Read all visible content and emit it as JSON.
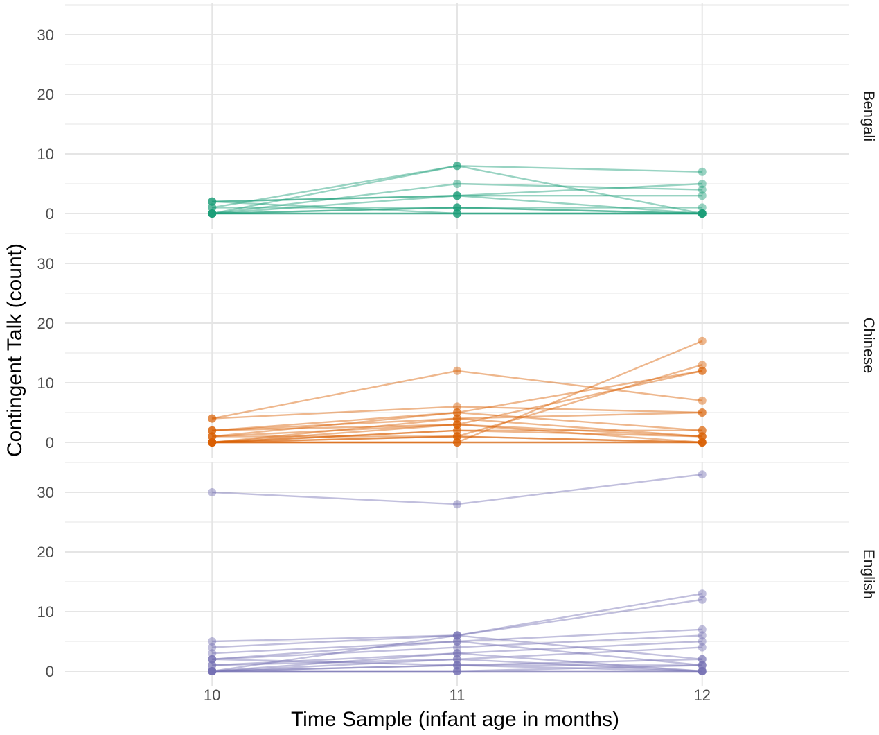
{
  "chart_data": {
    "type": "line",
    "title": "",
    "xlabel": "Time Sample (infant age in months)",
    "ylabel": "Contingent Talk (count)",
    "x": [
      10,
      11,
      12
    ],
    "x_tick_labels": [
      "10",
      "11",
      "12"
    ],
    "xlim": [
      9.4,
      12.6
    ],
    "ylim": [
      -1,
      30.5
    ],
    "y_tick_values": [
      0,
      10,
      20,
      30
    ],
    "y_tick_labels": [
      "0",
      "10",
      "20",
      "30"
    ],
    "grid": true,
    "legend": "none",
    "point_opacity": 0.45,
    "facets": [
      {
        "name": "Bengali",
        "color": "#1b9e77",
        "series": [
          [
            0,
            8,
            7
          ],
          [
            1,
            8,
            0
          ],
          [
            0,
            5,
            4
          ],
          [
            2,
            3,
            5
          ],
          [
            0,
            3,
            3
          ],
          [
            2,
            3,
            0
          ],
          [
            1,
            1,
            0
          ],
          [
            0,
            1,
            1
          ],
          [
            0,
            0,
            0
          ],
          [
            0,
            0,
            0
          ],
          [
            2,
            0,
            0
          ],
          [
            0,
            1,
            0
          ]
        ]
      },
      {
        "name": "Chinese",
        "color": "#d95f02",
        "series": [
          [
            4,
            12,
            7
          ],
          [
            4,
            6,
            5
          ],
          [
            0,
            0,
            17
          ],
          [
            0,
            1,
            13
          ],
          [
            1,
            3,
            12
          ],
          [
            2,
            5,
            12
          ],
          [
            0,
            4,
            5
          ],
          [
            1,
            5,
            2
          ],
          [
            2,
            3,
            1
          ],
          [
            0,
            2,
            1
          ],
          [
            0,
            1,
            0
          ],
          [
            0,
            0,
            0
          ],
          [
            0,
            0,
            0
          ],
          [
            1,
            1,
            0
          ],
          [
            0,
            2,
            2
          ],
          [
            2,
            4,
            1
          ],
          [
            0,
            3,
            0
          ]
        ]
      },
      {
        "name": "English",
        "color": "#7570b3",
        "series": [
          [
            30,
            28,
            33
          ],
          [
            5,
            6,
            13
          ],
          [
            4,
            6,
            12
          ],
          [
            3,
            5,
            7
          ],
          [
            2,
            4,
            6
          ],
          [
            1,
            3,
            5
          ],
          [
            0,
            2,
            4
          ],
          [
            0,
            6,
            2
          ],
          [
            2,
            5,
            1
          ],
          [
            0,
            1,
            2
          ],
          [
            0,
            0,
            0
          ],
          [
            0,
            0,
            0
          ],
          [
            0,
            1,
            1
          ],
          [
            1,
            2,
            0
          ],
          [
            0,
            3,
            0
          ],
          [
            0,
            0,
            1
          ],
          [
            2,
            1,
            0
          ]
        ]
      }
    ]
  }
}
